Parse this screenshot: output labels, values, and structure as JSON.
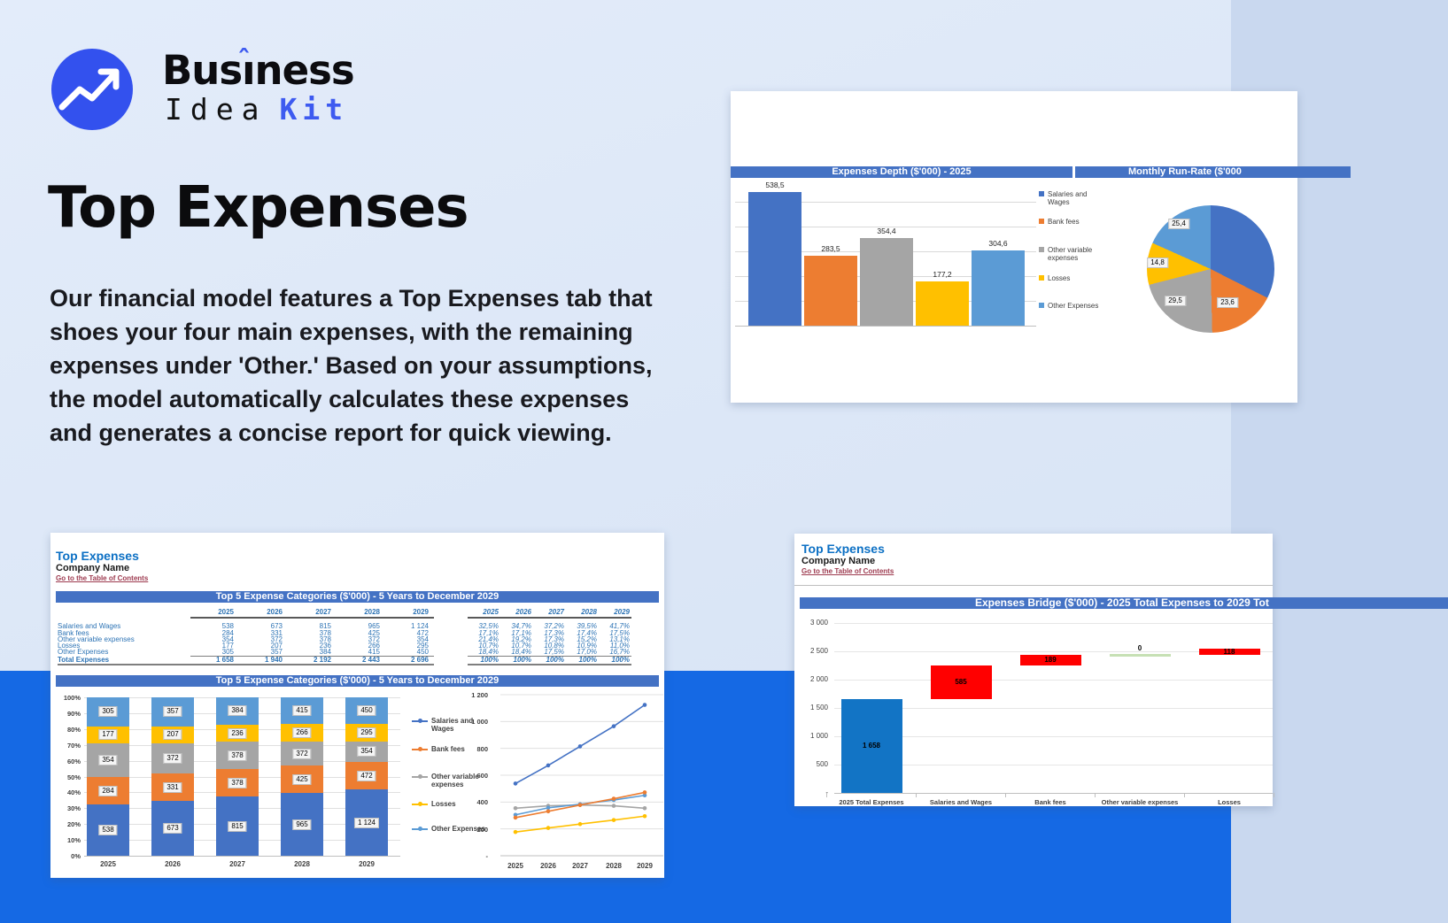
{
  "page": {
    "bg_top": "#dce7f6",
    "band_color": "#1569e4"
  },
  "logo": {
    "brand": "Business",
    "accent_hat": "ˆ",
    "line2_left": "Idea",
    "line2_right": "Kit",
    "circle_color": "#3351ee",
    "accent_color": "#3d5af0"
  },
  "hero": {
    "title": "Top Expenses",
    "paragraph": "Our financial model features a Top Expenses tab that shoes your four main expenses, with the remaining expenses under 'Other.' Based on your assumptions, the model automatically calculates these expenses and generates a concise report for quick viewing."
  },
  "colors": {
    "series": [
      "#4472c4",
      "#ed7d31",
      "#a5a5a5",
      "#ffc000",
      "#5b9bd5"
    ],
    "header_bar": "#4472c4",
    "waterfall_total": "#1274c5",
    "waterfall_increase": "#ff0000",
    "waterfall_zero": "#c6e0b4",
    "table_text": "#2e74b5",
    "card_title": "#0c70c4",
    "link": "#9d3a4f"
  },
  "runrate_card": {
    "depth_header": "Expenses Depth ($'000) - 2025",
    "runrate_header": "Monthly Run-Rate ($'000",
    "legend": [
      "Salaries and Wages",
      "Bank fees",
      "Other variable expenses",
      "Losses",
      "Other Expenses"
    ],
    "bar_labels": [
      "538,5",
      "283,5",
      "354,4",
      "177,2",
      "304,6"
    ],
    "pie_labels": [
      "25,4",
      "14,8",
      "29,5",
      "23,6"
    ]
  },
  "top5_card": {
    "title": "Top Expenses",
    "company": "Company Name",
    "link": "Go to the Table of Contents",
    "table_header": "Top 5 Expense Categories ($'000) - 5 Years to December 2029",
    "chart_header": "Top 5 Expense Categories ($'000) - 5 Years to December 2029",
    "years": [
      "2025",
      "2026",
      "2027",
      "2028",
      "2029"
    ],
    "rows": [
      {
        "label": "Salaries and Wages",
        "values": [
          "538",
          "673",
          "815",
          "965",
          "1 124"
        ],
        "pcts": [
          "32,5%",
          "34,7%",
          "37,2%",
          "39,5%",
          "41,7%"
        ]
      },
      {
        "label": "Bank fees",
        "values": [
          "284",
          "331",
          "378",
          "425",
          "472"
        ],
        "pcts": [
          "17,1%",
          "17,1%",
          "17,3%",
          "17,4%",
          "17,5%"
        ]
      },
      {
        "label": "Other variable expenses",
        "values": [
          "354",
          "372",
          "378",
          "372",
          "354"
        ],
        "pcts": [
          "21,4%",
          "19,2%",
          "17,3%",
          "15,2%",
          "13,1%"
        ]
      },
      {
        "label": "Losses",
        "values": [
          "177",
          "207",
          "236",
          "266",
          "295"
        ],
        "pcts": [
          "10,7%",
          "10,7%",
          "10,8%",
          "10,9%",
          "11,0%"
        ]
      },
      {
        "label": "Other Expenses",
        "values": [
          "305",
          "357",
          "384",
          "415",
          "450"
        ],
        "pcts": [
          "18,4%",
          "18,4%",
          "17,5%",
          "17,0%",
          "16,7%"
        ]
      }
    ],
    "total": {
      "label": "Total Expenses",
      "values": [
        "1 658",
        "1 940",
        "2 192",
        "2 443",
        "2 696"
      ],
      "pcts": [
        "100%",
        "100%",
        "100%",
        "100%",
        "100%"
      ]
    },
    "stacked_y_axis": [
      "100%",
      "90%",
      "80%",
      "70%",
      "60%",
      "50%",
      "40%",
      "30%",
      "20%",
      "10%",
      "0%"
    ],
    "line_y_axis": [
      "1 200",
      "1 000",
      "800",
      "600",
      "400",
      "200",
      "-"
    ]
  },
  "bridge_card": {
    "title": "Top Expenses",
    "company": "Company Name",
    "link": "Go to the Table of Contents",
    "header": "Expenses Bridge ($'000) - 2025 Total Expenses to 2029 Tot",
    "y_axis": [
      "3 000",
      "2 500",
      "2 000",
      "1 500",
      "1 000",
      "500",
      "-"
    ],
    "categories": [
      "2025 Total Expenses",
      "Salaries and Wages",
      "Bank fees",
      "Other variable expenses",
      "Losses"
    ],
    "bar_labels": [
      "1 658",
      "585",
      "189",
      "0",
      "118"
    ]
  },
  "chart_data": [
    {
      "id": "expenses_depth",
      "type": "bar",
      "title": "Expenses Depth ($'000) - 2025",
      "categories": [
        "Salaries and Wages",
        "Bank fees",
        "Other variable expenses",
        "Losses",
        "Other Expenses"
      ],
      "values": [
        538.5,
        283.5,
        354.4,
        177.2,
        304.6
      ],
      "ylim": [
        0,
        600
      ],
      "grid": true,
      "legend_position": "right"
    },
    {
      "id": "monthly_run_rate",
      "type": "pie",
      "title": "Monthly Run-Rate ($'000",
      "slices": [
        {
          "name": "Salaries and Wages",
          "pct": 32.5
        },
        {
          "name": "Bank fees",
          "pct": 17.1,
          "label": "23,6"
        },
        {
          "name": "Other variable expenses",
          "pct": 21.4,
          "label": "29,5"
        },
        {
          "name": "Losses",
          "pct": 10.7,
          "label": "14,8"
        },
        {
          "name": "Other Expenses",
          "pct": 18.4,
          "label": "25,4"
        }
      ]
    },
    {
      "id": "top5_stacked",
      "type": "bar",
      "stacked": true,
      "percent_scale": true,
      "title": "Top 5 Expense Categories ($'000) - 5 Years to December 2029",
      "categories": [
        "2025",
        "2026",
        "2027",
        "2028",
        "2029"
      ],
      "series": [
        {
          "name": "Salaries and Wages",
          "values": [
            538,
            673,
            815,
            965,
            1124
          ],
          "pcts": [
            32.5,
            34.7,
            37.2,
            39.5,
            41.7
          ]
        },
        {
          "name": "Bank fees",
          "values": [
            284,
            331,
            378,
            425,
            472
          ],
          "pcts": [
            17.1,
            17.1,
            17.3,
            17.4,
            17.5
          ]
        },
        {
          "name": "Other variable expenses",
          "values": [
            354,
            372,
            378,
            372,
            354
          ],
          "pcts": [
            21.4,
            19.2,
            17.3,
            15.2,
            13.1
          ]
        },
        {
          "name": "Losses",
          "values": [
            177,
            207,
            236,
            266,
            295
          ],
          "pcts": [
            10.7,
            10.7,
            10.8,
            10.9,
            11.0
          ]
        },
        {
          "name": "Other Expenses",
          "values": [
            305,
            357,
            384,
            415,
            450
          ],
          "pcts": [
            18.4,
            18.4,
            17.5,
            17.0,
            16.7
          ]
        }
      ],
      "ylim": [
        0,
        100
      ]
    },
    {
      "id": "top5_lines",
      "type": "line",
      "x": [
        "2025",
        "2026",
        "2027",
        "2028",
        "2029"
      ],
      "series": [
        {
          "name": "Salaries and Wages",
          "values": [
            538,
            673,
            815,
            965,
            1124
          ]
        },
        {
          "name": "Bank fees",
          "values": [
            284,
            331,
            378,
            425,
            472
          ]
        },
        {
          "name": "Other variable expenses",
          "values": [
            354,
            372,
            378,
            372,
            354
          ]
        },
        {
          "name": "Losses",
          "values": [
            177,
            207,
            236,
            266,
            295
          ]
        },
        {
          "name": "Other Expenses",
          "values": [
            305,
            357,
            384,
            415,
            450
          ]
        }
      ],
      "ylim": [
        0,
        1200
      ],
      "grid": true
    },
    {
      "id": "expenses_bridge",
      "type": "waterfall",
      "title": "Expenses Bridge ($'000) - 2025 Total Expenses to 2029 Tot",
      "categories": [
        "2025 Total Expenses",
        "Salaries and Wages",
        "Bank fees",
        "Other variable expenses",
        "Losses"
      ],
      "starts": [
        0,
        1658,
        2243,
        2432,
        2432
      ],
      "ends": [
        1658,
        2243,
        2432,
        2432,
        2550
      ],
      "ylim": [
        0,
        3000
      ]
    }
  ]
}
